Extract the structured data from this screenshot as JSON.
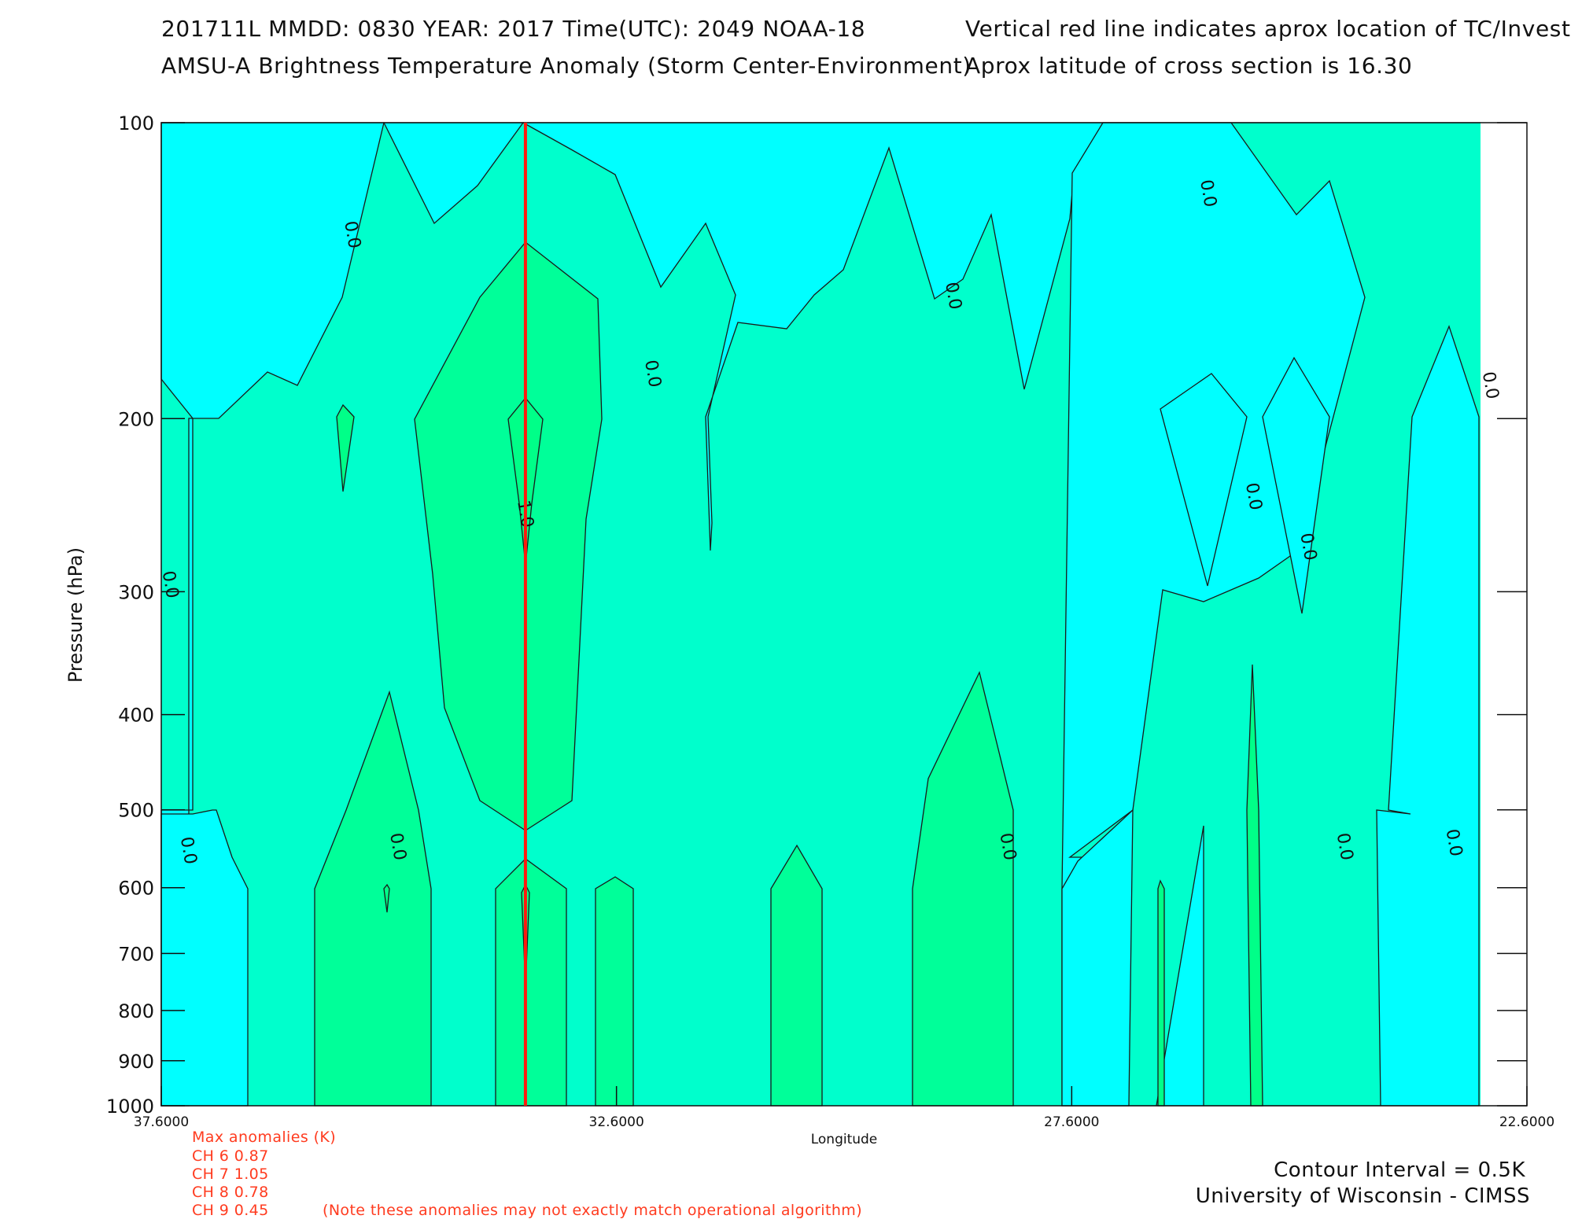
{
  "header": {
    "line1_left": "201711L  MMDD: 0830 YEAR: 2017 Time(UTC): 2049 NOAA-18",
    "line2_left": "AMSU-A Brightness Temperature Anomaly (Storm Center-Environment)",
    "line1_right": "Vertical red line indicates aprox location of TC/Invest",
    "line2_right": "Aprox latitude of cross section is 16.30"
  },
  "chart_data": {
    "type": "contour",
    "title": "AMSU-A Brightness Temperature Anomaly (Storm Center-Environment)",
    "xlabel": "Longitude",
    "ylabel": "Pressure (hPa)",
    "xlim": [
      37.6,
      22.6
    ],
    "ylim": [
      1000,
      100
    ],
    "y_scale": "log",
    "x_ticks": [
      "37.6000",
      "32.6000",
      "27.6000",
      "22.6000"
    ],
    "y_ticks": [
      "100",
      "200",
      "300",
      "400",
      "500",
      "600",
      "700",
      "800",
      "900",
      "1000"
    ],
    "storm_longitude": 33.6,
    "contour_interval_K": 0.5,
    "contour_levels": [
      0.0,
      0.5,
      1.0
    ],
    "contour_labels": [
      {
        "text": "0.0",
        "lon": 35.5,
        "p": 130
      },
      {
        "text": "0.0",
        "lon": 37.5,
        "p": 295
      },
      {
        "text": "0.0",
        "lon": 37.3,
        "p": 550
      },
      {
        "text": "0.0",
        "lon": 35.0,
        "p": 545
      },
      {
        "text": "1.0",
        "lon": 33.6,
        "p": 250
      },
      {
        "text": "0.0",
        "lon": 32.2,
        "p": 180
      },
      {
        "text": "0.0",
        "lon": 28.9,
        "p": 150
      },
      {
        "text": "0.0",
        "lon": 28.3,
        "p": 545
      },
      {
        "text": "0.0",
        "lon": 26.1,
        "p": 118
      },
      {
        "text": "0.0",
        "lon": 25.6,
        "p": 240
      },
      {
        "text": "0.0",
        "lon": 25.0,
        "p": 270
      },
      {
        "text": "0.0",
        "lon": 24.6,
        "p": 545
      },
      {
        "text": "0.0",
        "lon": 23.0,
        "p": 185
      },
      {
        "text": "0.0",
        "lon": 23.4,
        "p": 540
      }
    ],
    "fill_colors": {
      "below_0": "#00ffff",
      "0_to_0.5": "#00ffcc",
      "0.5_to_1.0": "#00ff99",
      "above_1.0": "#00ff88"
    },
    "max_anomalies": [
      {
        "channel": "CH 6",
        "value": 0.87
      },
      {
        "channel": "CH 7",
        "value": 1.05
      },
      {
        "channel": "CH 8",
        "value": 0.78
      },
      {
        "channel": "CH 9",
        "value": 0.45
      }
    ]
  },
  "footer": {
    "max_title": "Max anomalies (K)",
    "ch6": "CH 6  0.87",
    "ch7": "CH 7  1.05",
    "ch8": "CH 8  0.78",
    "ch9": "CH 9  0.45",
    "note": "(Note these anomalies may not exactly match operational algorithm)",
    "contour_interval": "Contour Interval = 0.5K",
    "institution": "University of Wisconsin - CIMSS"
  }
}
